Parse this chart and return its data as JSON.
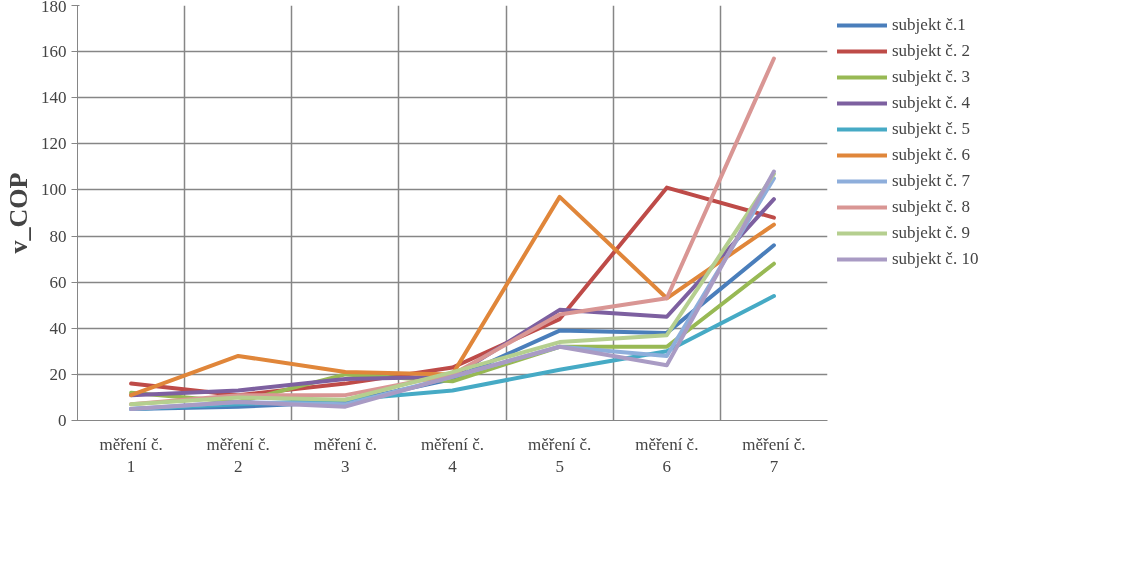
{
  "chart_data": {
    "type": "line",
    "ylabel": "v_COP",
    "categories": [
      "měření č. 1",
      "měření č. 2",
      "měření č. 3",
      "měření č. 4",
      "měření č. 5",
      "měření č. 6",
      "měření č. 7"
    ],
    "ylim": [
      0,
      180
    ],
    "yticks": [
      0,
      20,
      40,
      60,
      80,
      100,
      120,
      140,
      160,
      180
    ],
    "grid": true,
    "legend": "right",
    "marker": "none",
    "line_style": "solid",
    "series": [
      {
        "name": "subjekt č.1",
        "color": "#4a7ebb",
        "values": [
          5,
          6,
          8,
          18,
          39,
          38,
          76
        ]
      },
      {
        "name": "subjekt č. 2",
        "color": "#be4b48",
        "values": [
          16,
          11,
          16,
          23,
          44,
          101,
          88
        ]
      },
      {
        "name": "subjekt č. 3",
        "color": "#98b954",
        "values": [
          12,
          8,
          20,
          17,
          32,
          32,
          68
        ]
      },
      {
        "name": "subjekt č. 4",
        "color": "#7d60a0",
        "values": [
          11,
          13,
          18,
          19,
          48,
          45,
          96
        ]
      },
      {
        "name": "subjekt č. 5",
        "color": "#46aac5",
        "values": [
          5,
          7,
          9,
          13,
          22,
          30,
          54
        ]
      },
      {
        "name": "subjekt č. 6",
        "color": "#e0863a",
        "values": [
          11,
          28,
          21,
          20,
          97,
          53,
          85
        ]
      },
      {
        "name": "subjekt č. 7",
        "color": "#8eaedb",
        "values": [
          5,
          8,
          7,
          19,
          32,
          28,
          105
        ]
      },
      {
        "name": "subjekt č. 8",
        "color": "#d99694",
        "values": [
          7,
          11,
          11,
          20,
          46,
          53,
          157
        ]
      },
      {
        "name": "subjekt č. 9",
        "color": "#b5cf8f",
        "values": [
          7,
          10,
          9,
          21,
          34,
          37,
          107
        ]
      },
      {
        "name": "subjekt č. 10",
        "color": "#a99bc4",
        "values": [
          5,
          8,
          6,
          19,
          32,
          24,
          108
        ]
      }
    ]
  }
}
